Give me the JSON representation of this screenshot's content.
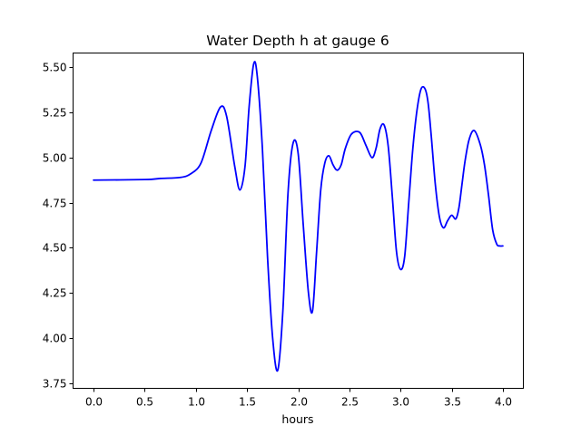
{
  "chart_data": {
    "type": "line",
    "title": "Water Depth h at gauge 6",
    "xlabel": "hours",
    "ylabel": "",
    "xlim": [
      -0.2,
      4.2
    ],
    "ylim": [
      3.72,
      5.58
    ],
    "xticks": [
      0.0,
      0.5,
      1.0,
      1.5,
      2.0,
      2.5,
      3.0,
      3.5,
      4.0
    ],
    "xtick_labels": [
      "0.0",
      "0.5",
      "1.0",
      "1.5",
      "2.0",
      "2.5",
      "3.0",
      "3.5",
      "4.0"
    ],
    "yticks": [
      3.75,
      4.0,
      4.25,
      4.5,
      4.75,
      5.0,
      5.25,
      5.5
    ],
    "ytick_labels": [
      "3.75",
      "4.00",
      "4.25",
      "4.50",
      "4.75",
      "5.00",
      "5.25",
      "5.50"
    ],
    "grid": false,
    "color": "#0000ff",
    "series": [
      {
        "x": [
          0.0,
          0.5,
          0.65,
          0.85,
          0.95,
          1.05,
          1.15,
          1.24,
          1.3,
          1.38,
          1.43,
          1.48,
          1.52,
          1.565,
          1.6,
          1.65,
          1.7,
          1.75,
          1.8,
          1.85,
          1.9,
          1.95,
          2.0,
          2.05,
          2.1,
          2.14,
          2.18,
          2.22,
          2.26,
          2.3,
          2.34,
          2.38,
          2.42,
          2.46,
          2.52,
          2.6,
          2.66,
          2.72,
          2.76,
          2.8,
          2.84,
          2.88,
          2.92,
          2.96,
          3.0,
          3.04,
          3.08,
          3.12,
          3.16,
          3.2,
          3.24,
          3.27,
          3.3,
          3.34,
          3.38,
          3.42,
          3.46,
          3.5,
          3.54,
          3.57,
          3.6,
          3.63,
          3.67,
          3.72,
          3.78,
          3.82,
          3.86,
          3.9,
          3.94,
          3.97,
          4.0
        ],
        "values": [
          4.875,
          4.878,
          4.884,
          4.89,
          4.91,
          4.97,
          5.15,
          5.28,
          5.23,
          4.95,
          4.82,
          4.95,
          5.28,
          5.52,
          5.45,
          5.05,
          4.45,
          4.0,
          3.82,
          4.15,
          4.8,
          5.08,
          5.02,
          4.62,
          4.25,
          4.15,
          4.48,
          4.82,
          4.97,
          5.01,
          4.96,
          4.93,
          4.96,
          5.05,
          5.13,
          5.14,
          5.07,
          5.0,
          5.05,
          5.16,
          5.18,
          5.06,
          4.78,
          4.48,
          4.38,
          4.45,
          4.75,
          5.05,
          5.26,
          5.38,
          5.38,
          5.3,
          5.12,
          4.85,
          4.67,
          4.61,
          4.65,
          4.68,
          4.66,
          4.72,
          4.85,
          4.98,
          5.1,
          5.15,
          5.07,
          4.96,
          4.79,
          4.6,
          4.52,
          4.51,
          4.51
        ]
      }
    ]
  }
}
